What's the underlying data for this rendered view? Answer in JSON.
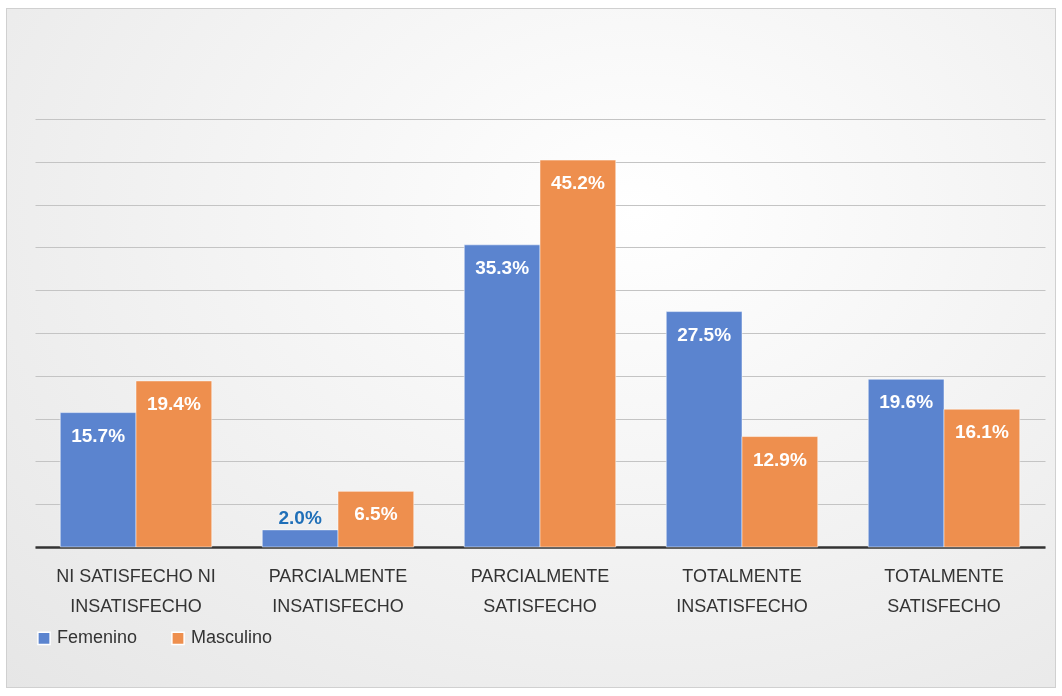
{
  "chart_data": {
    "type": "bar",
    "categories": [
      "NI SATISFECHO NI\nINSATISFECHO",
      "PARCIALMENTE\nINSATISFECHO",
      "PARCIALMENTE\nSATISFECHO",
      "TOTALMENTE\nINSATISFECHO",
      "TOTALMENTE\nSATISFECHO"
    ],
    "series": [
      {
        "name": "Femenino",
        "color": "#5b84cf",
        "values": [
          15.7,
          2.0,
          35.3,
          27.5,
          19.6
        ],
        "value_labels": [
          "15.7%",
          "2.0%",
          "35.3%",
          "27.5%",
          "19.6%"
        ]
      },
      {
        "name": "Masculino",
        "color": "#ee8f4e",
        "values": [
          19.4,
          6.5,
          45.2,
          12.9,
          16.1
        ],
        "value_labels": [
          "19.4%",
          "6.5%",
          "45.2%",
          "12.9%",
          "16.1%"
        ]
      }
    ],
    "ylim": [
      0,
      50
    ],
    "yticks": [
      {
        "value": 0,
        "label": null
      },
      {
        "value": 5,
        "label": null
      },
      {
        "value": 10,
        "label": null
      },
      {
        "value": 15,
        "label": null
      },
      {
        "value": 20,
        "label": null
      },
      {
        "value": 25,
        "label": null
      },
      {
        "value": 30,
        "label": null
      },
      {
        "value": 35,
        "label": null
      },
      {
        "value": 40,
        "label": null
      },
      {
        "value": 45,
        "label": null
      },
      {
        "value": 50,
        "label": null
      }
    ],
    "grid": "y",
    "legend": "bottom"
  }
}
